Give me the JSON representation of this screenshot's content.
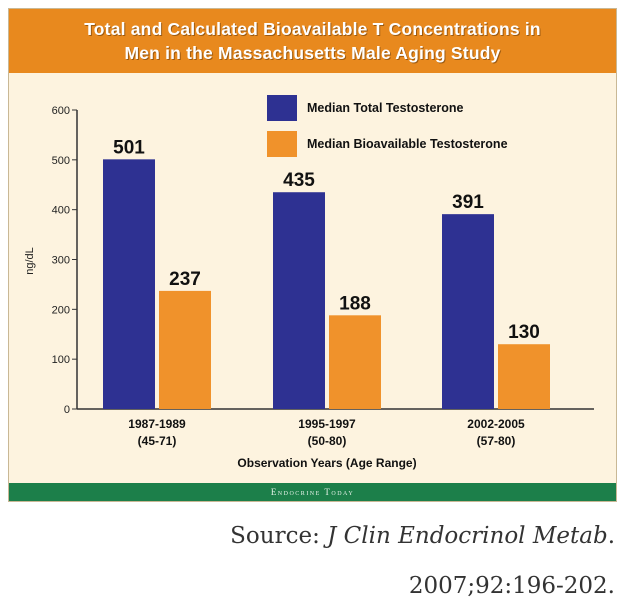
{
  "chart_data": {
    "type": "bar",
    "title_lines": [
      "Total and Calculated Bioavailable T Concentrations in",
      "Men in the Massachusetts Male Aging Study"
    ],
    "categories": [
      {
        "line1": "1987-1989",
        "line2": "(45-71)"
      },
      {
        "line1": "1995-1997",
        "line2": "(50-80)"
      },
      {
        "line1": "2002-2005",
        "line2": "(57-80)"
      }
    ],
    "series": [
      {
        "name": "Median Total Testosterone",
        "color": "#2e3192",
        "values": [
          501,
          435,
          391
        ]
      },
      {
        "name": "Median Bioavailable Testosterone",
        "color": "#f0922b",
        "values": [
          237,
          188,
          130
        ]
      }
    ],
    "xlabel": "Observation Years (Age Range)",
    "ylabel": "ng/dL",
    "ylim": [
      0,
      600
    ],
    "yticks": [
      0,
      100,
      200,
      300,
      400,
      500,
      600
    ],
    "legend_position": "top-right",
    "grid": false
  },
  "footer_credit": "Endocrine Today",
  "source": {
    "prefix": "Source: ",
    "journal": "J Clin Endocrinol Metab",
    "suffix": ".",
    "citation": "2007;92:196-202."
  }
}
